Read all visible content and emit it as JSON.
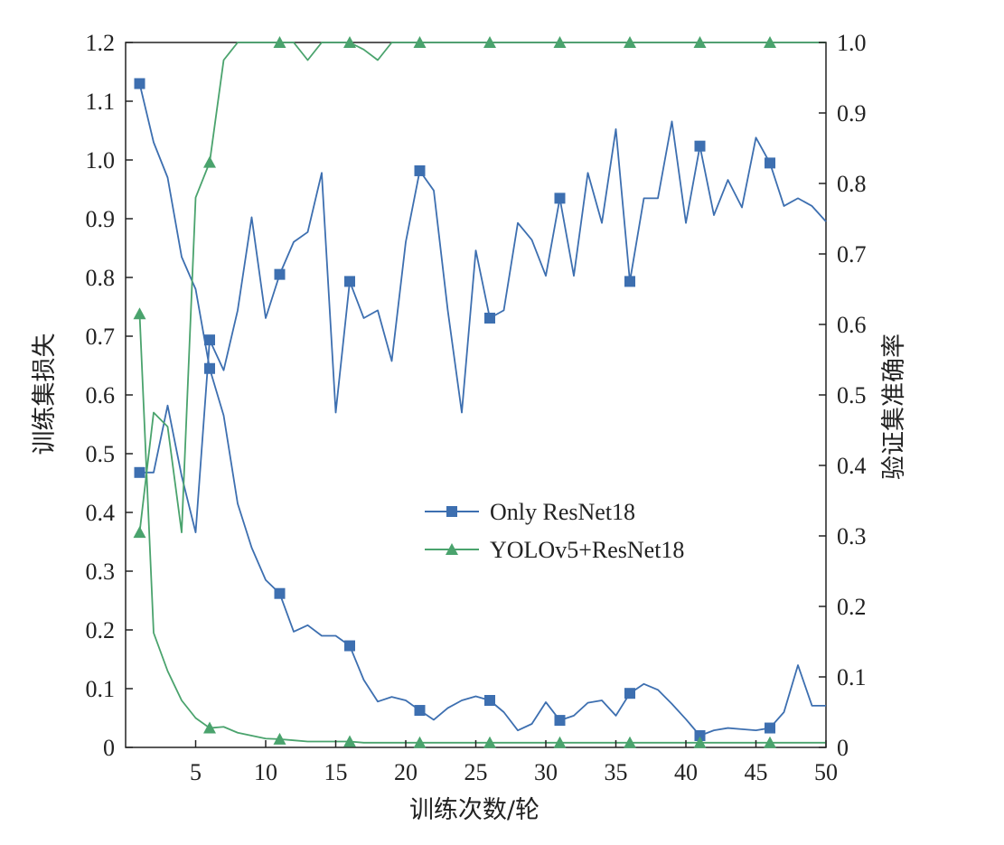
{
  "chart_data": {
    "type": "line",
    "xlabel": "训练次数/轮",
    "ylabel_left": "训练集损失",
    "ylabel_right": "验证集准确率",
    "xlim": [
      0,
      50
    ],
    "ylim_left": [
      0,
      1.2
    ],
    "ylim_right": [
      0,
      1.0
    ],
    "x_ticks": [
      5,
      10,
      15,
      20,
      25,
      30,
      35,
      40,
      45,
      50
    ],
    "y_left_ticks": [
      0,
      0.1,
      0.2,
      0.3,
      0.4,
      0.5,
      0.6,
      0.7,
      0.8,
      0.9,
      1.0,
      1.1,
      1.2
    ],
    "y_right_ticks": [
      0,
      0.1,
      0.2,
      0.3,
      0.4,
      0.5,
      0.6,
      0.7,
      0.8,
      0.9,
      1.0
    ],
    "y_left_tick_labels": [
      "0",
      "0.1",
      "0.2",
      "0.3",
      "0.4",
      "0.5",
      "0.6",
      "0.7",
      "0.8",
      "0.9",
      "1.0",
      "1.1",
      "1.2"
    ],
    "y_right_tick_labels": [
      "0",
      "0.1",
      "0.2",
      "0.3",
      "0.4",
      "0.5",
      "0.6",
      "0.7",
      "0.8",
      "0.9",
      "1.0"
    ],
    "x": [
      1,
      2,
      3,
      4,
      5,
      6,
      7,
      8,
      9,
      10,
      11,
      12,
      13,
      14,
      15,
      16,
      17,
      18,
      19,
      20,
      21,
      22,
      23,
      24,
      25,
      26,
      27,
      28,
      29,
      30,
      31,
      32,
      33,
      34,
      35,
      36,
      37,
      38,
      39,
      40,
      41,
      42,
      43,
      44,
      45,
      46,
      47,
      48,
      49,
      50
    ],
    "marker_x": [
      1,
      6,
      11,
      16,
      21,
      26,
      31,
      36,
      41,
      46
    ],
    "series": [
      {
        "name": "Only ResNet18",
        "color": "#3d6fb0",
        "marker": "square",
        "loss": [
          1.13,
          1.03,
          0.97,
          0.835,
          0.78,
          0.645,
          0.565,
          0.415,
          0.34,
          0.285,
          0.262,
          0.197,
          0.208,
          0.19,
          0.19,
          0.173,
          0.115,
          0.078,
          0.086,
          0.08,
          0.063,
          0.047,
          0.067,
          0.08,
          0.087,
          0.08,
          0.06,
          0.029,
          0.04,
          0.077,
          0.046,
          0.054,
          0.076,
          0.08,
          0.054,
          0.092,
          0.108,
          0.098,
          0.074,
          0.048,
          0.02,
          0.029,
          0.033,
          0.031,
          0.029,
          0.033,
          0.06,
          0.14,
          0.071,
          0.071
        ],
        "accuracy": [
          0.39,
          0.39,
          0.485,
          0.385,
          0.305,
          0.578,
          0.535,
          0.62,
          0.752,
          0.609,
          0.671,
          0.717,
          0.731,
          0.815,
          0.475,
          0.661,
          0.609,
          0.62,
          0.548,
          0.717,
          0.818,
          0.79,
          0.62,
          0.475,
          0.705,
          0.609,
          0.62,
          0.744,
          0.72,
          0.669,
          0.779,
          0.669,
          0.815,
          0.744,
          0.877,
          0.661,
          0.779,
          0.779,
          0.888,
          0.744,
          0.853,
          0.755,
          0.805,
          0.766,
          0.865,
          0.829,
          0.768,
          0.779,
          0.768,
          0.746
        ]
      },
      {
        "name": "YOLOv5+ResNet18",
        "color": "#4aa36d",
        "marker": "triangle",
        "loss": [
          0.738,
          0.195,
          0.13,
          0.08,
          0.05,
          0.033,
          0.035,
          0.025,
          0.02,
          0.015,
          0.014,
          0.012,
          0.01,
          0.01,
          0.01,
          0.01,
          0.008,
          0.008,
          0.008,
          0.008,
          0.008,
          0.008,
          0.008,
          0.008,
          0.008,
          0.008,
          0.008,
          0.008,
          0.008,
          0.008,
          0.008,
          0.008,
          0.008,
          0.008,
          0.008,
          0.008,
          0.008,
          0.008,
          0.008,
          0.008,
          0.008,
          0.008,
          0.008,
          0.008,
          0.008,
          0.008,
          0.008,
          0.008,
          0.008,
          0.008
        ],
        "accuracy": [
          0.305,
          0.475,
          0.455,
          0.305,
          0.78,
          0.83,
          0.975,
          1.0,
          1.0,
          1.0,
          1.0,
          1.0,
          0.975,
          1.0,
          1.0,
          1.0,
          0.99,
          0.975,
          1.0,
          1.0,
          1.0,
          1.0,
          1.0,
          1.0,
          1.0,
          1.0,
          1.0,
          1.0,
          1.0,
          1.0,
          1.0,
          1.0,
          1.0,
          1.0,
          1.0,
          1.0,
          1.0,
          1.0,
          1.0,
          1.0,
          1.0,
          1.0,
          1.0,
          1.0,
          1.0,
          1.0,
          1.0,
          1.0,
          1.0,
          1.0
        ]
      }
    ],
    "legend": {
      "placement": "center-right"
    }
  }
}
